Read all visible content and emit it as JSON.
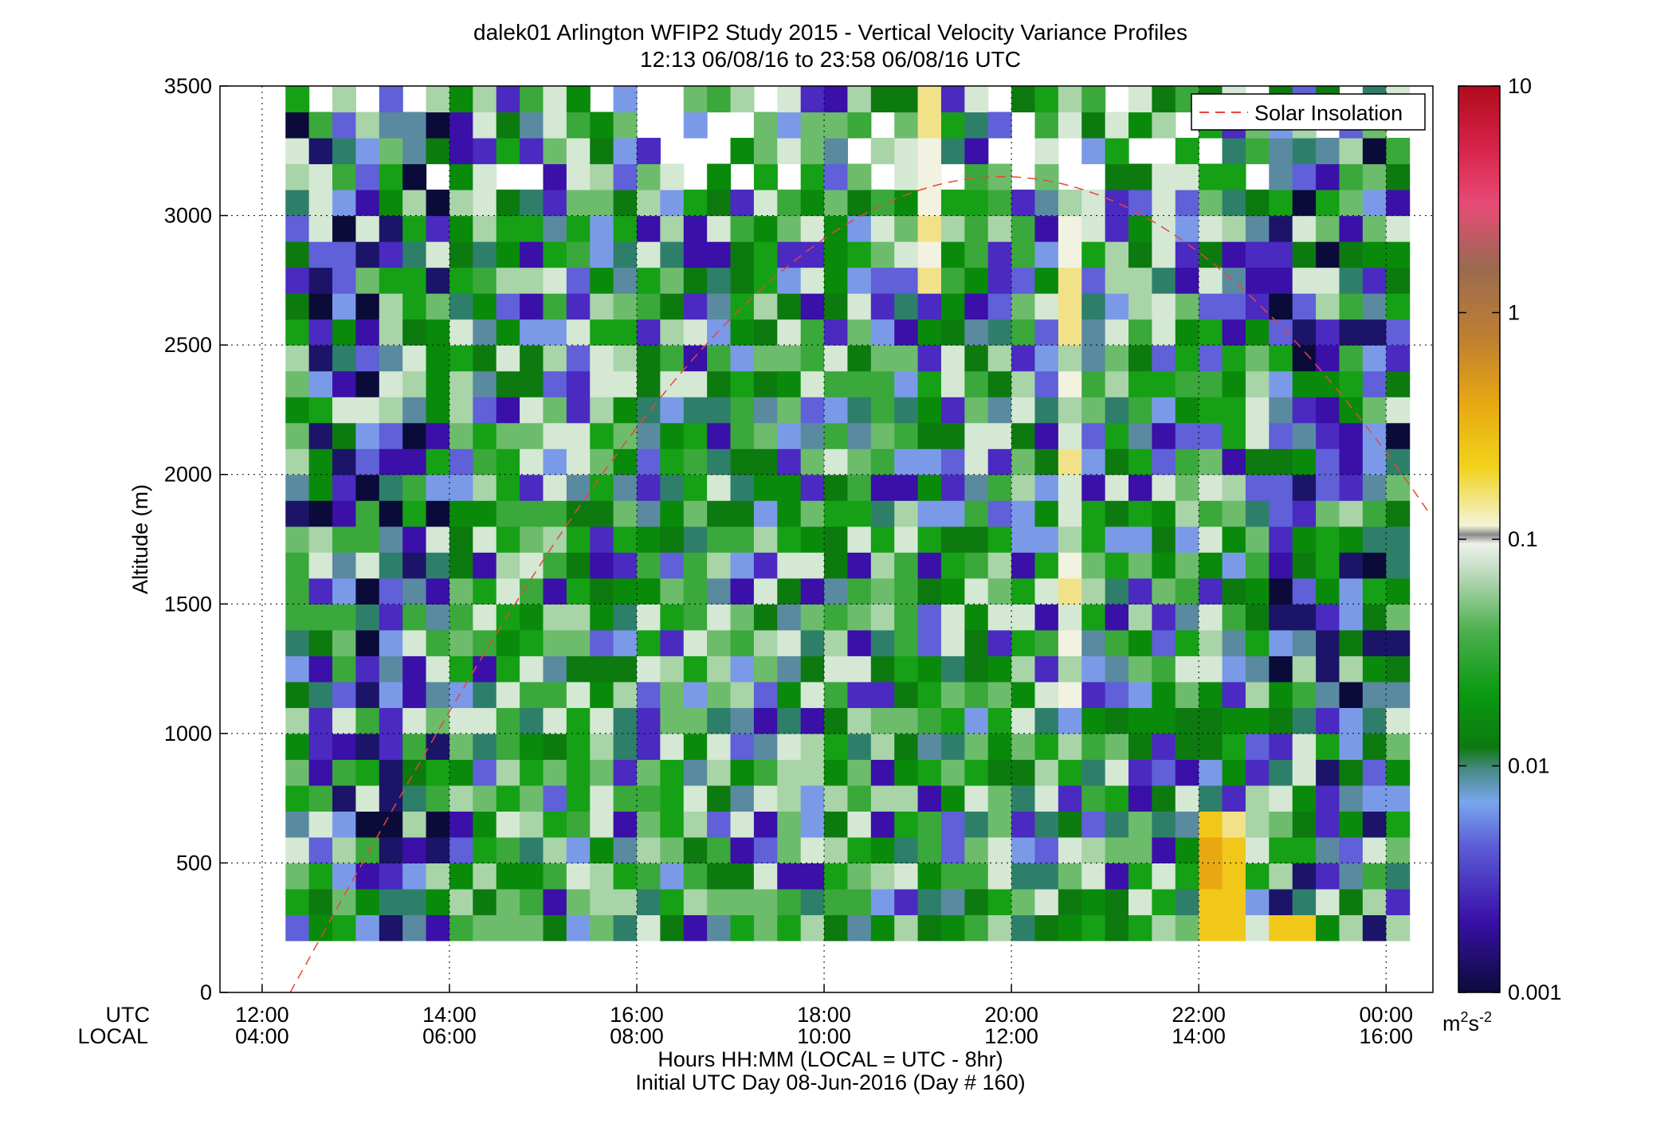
{
  "chart_data": {
    "type": "heatmap",
    "title": "dalek01 Arlington WFIP2 Study 2015 - Vertical Velocity Variance Profiles",
    "subtitle": "12:13 06/08/16 to 23:58 06/08/16  UTC",
    "ylabel": "Altitude (m)",
    "xlabel_line1": "Hours HH:MM  (LOCAL = UTC - 8hr)",
    "xlabel_line2": "Initial UTC Day 08-Jun-2016 (Day # 160)",
    "x_row_label_utc": "UTC",
    "x_row_label_local": "LOCAL",
    "x_ticks_utc": [
      "12:00",
      "14:00",
      "16:00",
      "18:00",
      "20:00",
      "22:00",
      "00:00"
    ],
    "x_ticks_local": [
      "04:00",
      "06:00",
      "08:00",
      "10:00",
      "12:00",
      "14:00",
      "16:00"
    ],
    "x_tick_hours": [
      12,
      14,
      16,
      18,
      20,
      22,
      24
    ],
    "xlim_hours": [
      11.55,
      24.5
    ],
    "y_ticks": [
      "0",
      "500",
      "1000",
      "1500",
      "2000",
      "2500",
      "3000",
      "3500"
    ],
    "ylim": [
      0,
      3500
    ],
    "grid": true,
    "colorbar": {
      "scale": "log",
      "range": [
        0.001,
        10
      ],
      "tick_labels": [
        "0.001",
        "0.01",
        "0.1",
        "1",
        "10"
      ],
      "unit_base": "m",
      "unit_sup1": "2",
      "unit_mid": "s",
      "unit_sup2": "-2"
    },
    "legend": {
      "position": "top-right",
      "entries": [
        "Solar Insolation"
      ]
    },
    "series": [
      {
        "name": "Solar Insolation",
        "style": "dashed",
        "color": "#e8453c",
        "description": "curve rises from ~0 m at 12:18, peaks ~3150 m near 19:55, falls to ~1800 m at 24:30"
      }
    ],
    "grid_cells": {
      "time_start_hours": 12.25,
      "time_step_hours": 0.25,
      "n_time": 48,
      "alt_start_m": 200,
      "alt_step_m": 100,
      "n_alt": 33
    }
  }
}
